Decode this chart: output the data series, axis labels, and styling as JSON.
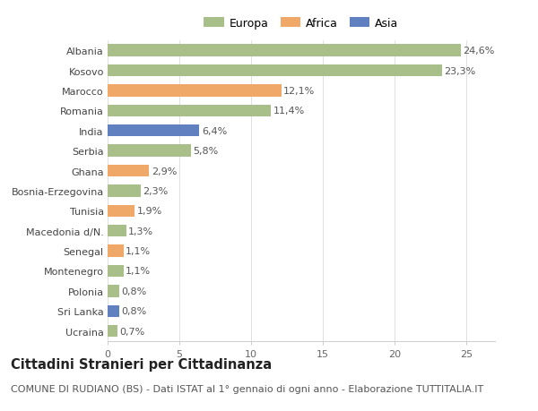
{
  "categories": [
    "Albania",
    "Kosovo",
    "Marocco",
    "Romania",
    "India",
    "Serbia",
    "Ghana",
    "Bosnia-Erzegovina",
    "Tunisia",
    "Macedonia d/N.",
    "Senegal",
    "Montenegro",
    "Polonia",
    "Sri Lanka",
    "Ucraina"
  ],
  "values": [
    24.6,
    23.3,
    12.1,
    11.4,
    6.4,
    5.8,
    2.9,
    2.3,
    1.9,
    1.3,
    1.1,
    1.1,
    0.8,
    0.8,
    0.7
  ],
  "labels": [
    "24,6%",
    "23,3%",
    "12,1%",
    "11,4%",
    "6,4%",
    "5,8%",
    "2,9%",
    "2,3%",
    "1,9%",
    "1,3%",
    "1,1%",
    "1,1%",
    "0,8%",
    "0,8%",
    "0,7%"
  ],
  "continents": [
    "Europa",
    "Europa",
    "Africa",
    "Europa",
    "Asia",
    "Europa",
    "Africa",
    "Europa",
    "Africa",
    "Europa",
    "Africa",
    "Europa",
    "Europa",
    "Asia",
    "Europa"
  ],
  "colors": {
    "Europa": "#a8bf8a",
    "Africa": "#f0a868",
    "Asia": "#6080c0"
  },
  "legend_order": [
    "Europa",
    "Africa",
    "Asia"
  ],
  "xlim": [
    0,
    27
  ],
  "xticks": [
    0,
    5,
    10,
    15,
    20,
    25
  ],
  "title": "Cittadini Stranieri per Cittadinanza",
  "subtitle": "COMUNE DI RUDIANO (BS) - Dati ISTAT al 1° gennaio di ogni anno - Elaborazione TUTTITALIA.IT",
  "bg_color": "#ffffff",
  "bar_height": 0.6,
  "label_fontsize": 8,
  "tick_fontsize": 8,
  "title_fontsize": 10.5,
  "subtitle_fontsize": 8
}
